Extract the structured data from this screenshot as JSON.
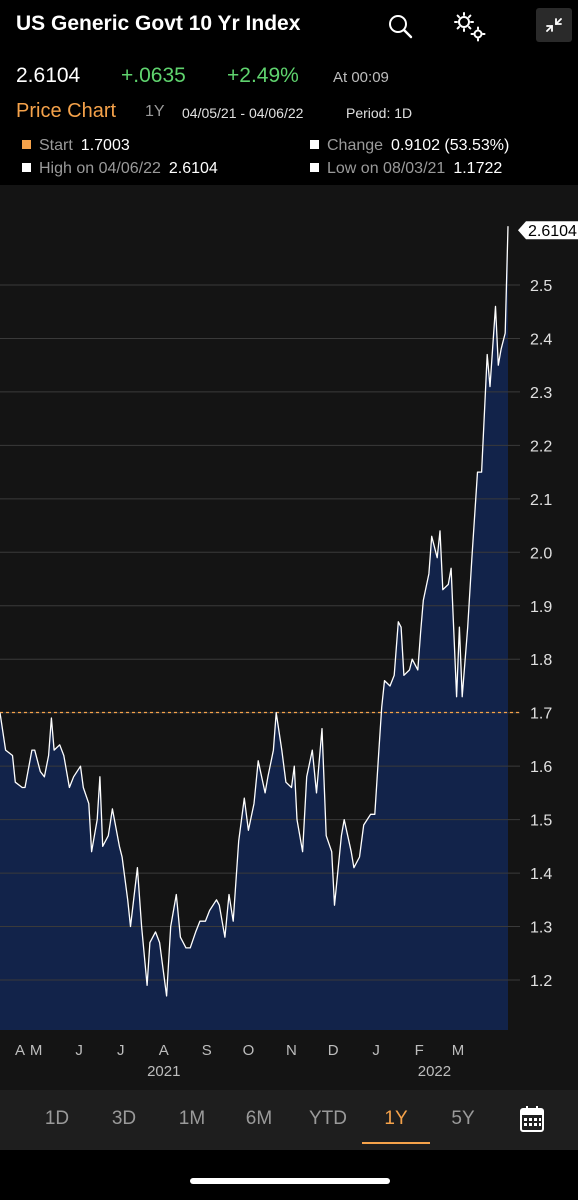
{
  "header": {
    "title": "US Generic Govt 10 Yr Index",
    "icons": [
      "search-icon",
      "settings-icon",
      "collapse-icon"
    ]
  },
  "quote": {
    "last": "2.6104",
    "change": "+.0635",
    "pct_change": "+2.49%",
    "time": "At 00:09"
  },
  "price_chart": {
    "label": "Price Chart",
    "range": "1Y",
    "dates": "04/05/21 - 04/06/22",
    "period": "Period: 1D"
  },
  "stats": {
    "start": {
      "label": "Start",
      "value": "1.7003"
    },
    "change": {
      "label": "Change",
      "value": "0.9102 (53.53%)"
    },
    "high": {
      "label": "High on 04/06/22",
      "value": "2.6104"
    },
    "low": {
      "label": "Low on 08/03/21",
      "value": "1.1722"
    }
  },
  "colors": {
    "accent": "#f5a24a",
    "positive": "#5fd36e",
    "area_fill": "#12234a",
    "line": "#ffffff"
  },
  "range_tabs": [
    "1D",
    "3D",
    "1M",
    "6M",
    "YTD",
    "1Y",
    "5Y"
  ],
  "active_range": "1Y",
  "chart_data": {
    "type": "area",
    "ylim": [
      1.1,
      2.66
    ],
    "y_ticks": [
      "1.2",
      "1.3",
      "1.4",
      "1.5",
      "1.6",
      "1.7",
      "1.8",
      "1.9",
      "2.0",
      "2.1",
      "2.2",
      "2.3",
      "2.4",
      "2.5"
    ],
    "reference_line": 1.7003,
    "last_value_label": "2.6104",
    "x_months": [
      "A",
      "M",
      "J",
      "J",
      "A",
      "S",
      "O",
      "N",
      "D",
      "J",
      "F",
      "M"
    ],
    "x_years": [
      "2021",
      "2022"
    ],
    "x_start": "2021-04-05",
    "x_end": "2022-04-06",
    "grid": true,
    "series": [
      {
        "points": [
          [
            "2021-04-05",
            1.7
          ],
          [
            "2021-04-09",
            1.63
          ],
          [
            "2021-04-14",
            1.62
          ],
          [
            "2021-04-16",
            1.57
          ],
          [
            "2021-04-21",
            1.56
          ],
          [
            "2021-04-23",
            1.56
          ],
          [
            "2021-04-28",
            1.63
          ],
          [
            "2021-04-30",
            1.63
          ],
          [
            "2021-05-04",
            1.59
          ],
          [
            "2021-05-07",
            1.58
          ],
          [
            "2021-05-10",
            1.62
          ],
          [
            "2021-05-12",
            1.69
          ],
          [
            "2021-05-14",
            1.63
          ],
          [
            "2021-05-18",
            1.64
          ],
          [
            "2021-05-21",
            1.62
          ],
          [
            "2021-05-25",
            1.56
          ],
          [
            "2021-05-28",
            1.58
          ],
          [
            "2021-06-02",
            1.6
          ],
          [
            "2021-06-04",
            1.56
          ],
          [
            "2021-06-08",
            1.53
          ],
          [
            "2021-06-10",
            1.44
          ],
          [
            "2021-06-14",
            1.5
          ],
          [
            "2021-06-16",
            1.58
          ],
          [
            "2021-06-18",
            1.45
          ],
          [
            "2021-06-22",
            1.47
          ],
          [
            "2021-06-25",
            1.52
          ],
          [
            "2021-06-30",
            1.45
          ],
          [
            "2021-07-02",
            1.43
          ],
          [
            "2021-07-06",
            1.35
          ],
          [
            "2021-07-08",
            1.3
          ],
          [
            "2021-07-13",
            1.41
          ],
          [
            "2021-07-16",
            1.3
          ],
          [
            "2021-07-20",
            1.19
          ],
          [
            "2021-07-22",
            1.27
          ],
          [
            "2021-07-26",
            1.29
          ],
          [
            "2021-07-29",
            1.27
          ],
          [
            "2021-08-03",
            1.17
          ],
          [
            "2021-08-06",
            1.3
          ],
          [
            "2021-08-10",
            1.36
          ],
          [
            "2021-08-13",
            1.28
          ],
          [
            "2021-08-17",
            1.26
          ],
          [
            "2021-08-20",
            1.26
          ],
          [
            "2021-08-24",
            1.29
          ],
          [
            "2021-08-27",
            1.31
          ],
          [
            "2021-08-31",
            1.31
          ],
          [
            "2021-09-03",
            1.33
          ],
          [
            "2021-09-08",
            1.35
          ],
          [
            "2021-09-10",
            1.34
          ],
          [
            "2021-09-14",
            1.28
          ],
          [
            "2021-09-17",
            1.36
          ],
          [
            "2021-09-20",
            1.31
          ],
          [
            "2021-09-24",
            1.46
          ],
          [
            "2021-09-28",
            1.54
          ],
          [
            "2021-10-01",
            1.48
          ],
          [
            "2021-10-05",
            1.53
          ],
          [
            "2021-10-08",
            1.61
          ],
          [
            "2021-10-13",
            1.55
          ],
          [
            "2021-10-15",
            1.58
          ],
          [
            "2021-10-19",
            1.63
          ],
          [
            "2021-10-21",
            1.7
          ],
          [
            "2021-10-25",
            1.63
          ],
          [
            "2021-10-28",
            1.57
          ],
          [
            "2021-11-01",
            1.56
          ],
          [
            "2021-11-03",
            1.6
          ],
          [
            "2021-11-05",
            1.5
          ],
          [
            "2021-11-09",
            1.44
          ],
          [
            "2021-11-12",
            1.58
          ],
          [
            "2021-11-16",
            1.63
          ],
          [
            "2021-11-19",
            1.55
          ],
          [
            "2021-11-23",
            1.67
          ],
          [
            "2021-11-26",
            1.47
          ],
          [
            "2021-11-30",
            1.44
          ],
          [
            "2021-12-02",
            1.34
          ],
          [
            "2021-12-07",
            1.47
          ],
          [
            "2021-12-09",
            1.5
          ],
          [
            "2021-12-14",
            1.44
          ],
          [
            "2021-12-16",
            1.41
          ],
          [
            "2021-12-20",
            1.43
          ],
          [
            "2021-12-23",
            1.49
          ],
          [
            "2021-12-28",
            1.51
          ],
          [
            "2021-12-31",
            1.51
          ],
          [
            "2022-01-03",
            1.63
          ],
          [
            "2022-01-05",
            1.71
          ],
          [
            "2022-01-07",
            1.76
          ],
          [
            "2022-01-11",
            1.75
          ],
          [
            "2022-01-14",
            1.77
          ],
          [
            "2022-01-17",
            1.87
          ],
          [
            "2022-01-19",
            1.86
          ],
          [
            "2022-01-21",
            1.77
          ],
          [
            "2022-01-25",
            1.78
          ],
          [
            "2022-01-27",
            1.8
          ],
          [
            "2022-01-31",
            1.78
          ],
          [
            "2022-02-02",
            1.85
          ],
          [
            "2022-02-04",
            1.91
          ],
          [
            "2022-02-08",
            1.96
          ],
          [
            "2022-02-10",
            2.03
          ],
          [
            "2022-02-14",
            1.99
          ],
          [
            "2022-02-16",
            2.04
          ],
          [
            "2022-02-18",
            1.93
          ],
          [
            "2022-02-22",
            1.94
          ],
          [
            "2022-02-24",
            1.97
          ],
          [
            "2022-02-28",
            1.73
          ],
          [
            "2022-03-02",
            1.86
          ],
          [
            "2022-03-04",
            1.73
          ],
          [
            "2022-03-08",
            1.86
          ],
          [
            "2022-03-11",
            1.99
          ],
          [
            "2022-03-15",
            2.15
          ],
          [
            "2022-03-18",
            2.15
          ],
          [
            "2022-03-22",
            2.37
          ],
          [
            "2022-03-24",
            2.31
          ],
          [
            "2022-03-28",
            2.46
          ],
          [
            "2022-03-30",
            2.35
          ],
          [
            "2022-04-01",
            2.38
          ],
          [
            "2022-04-04",
            2.41
          ],
          [
            "2022-04-06",
            2.61
          ]
        ]
      }
    ]
  }
}
